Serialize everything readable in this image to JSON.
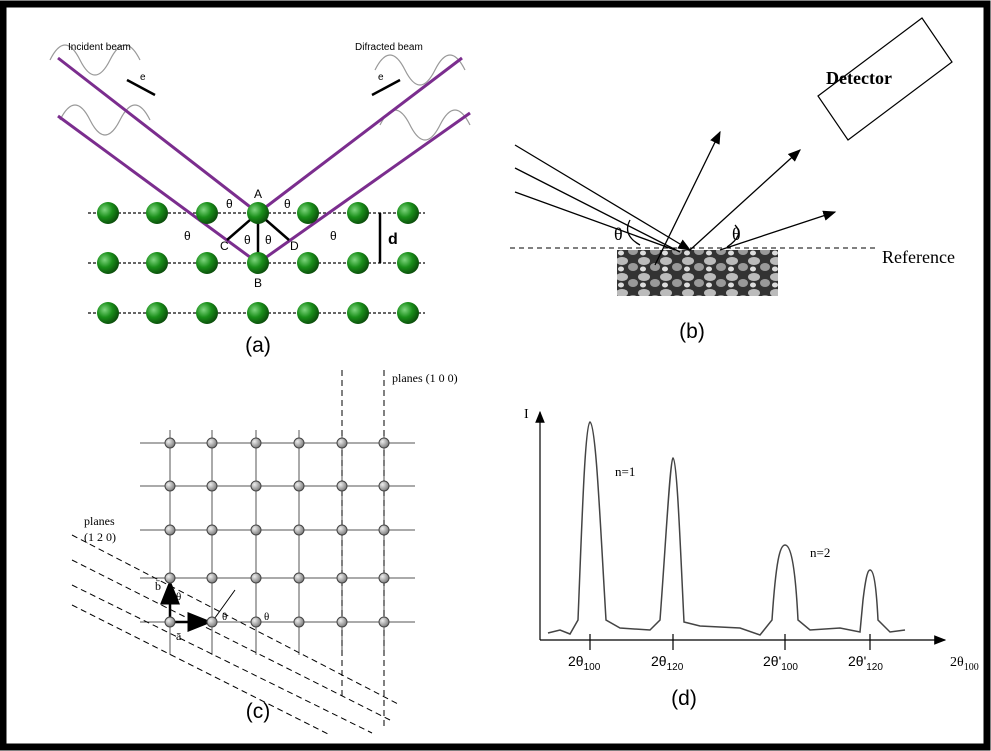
{
  "panel_a": {
    "incident_label": "Incident beam",
    "diffracted_label": "Difracted beam",
    "e_labels": [
      "e",
      "e"
    ],
    "points": [
      "A",
      "B",
      "C",
      "D"
    ],
    "theta_labels": [
      "θ",
      "θ",
      "θ",
      "θ",
      "θ",
      "θ"
    ],
    "d_label": "d",
    "caption": "(a)"
  },
  "panel_b": {
    "detector_label": "Detector",
    "theta_labels": [
      "θ",
      "θ"
    ],
    "reference_label": "Reference",
    "caption": "(b)"
  },
  "panel_c": {
    "planes_100_label": "planes (1 0 0)",
    "planes_120_label": [
      "planes",
      "(1 2 0)"
    ],
    "vector_b": "b̄",
    "vector_a": "ā",
    "theta_labels": [
      "θ",
      "θ",
      "θ"
    ],
    "caption": "(c)"
  },
  "panel_d": {
    "y_label": "I",
    "peak_orders": [
      "n=1",
      "n=2"
    ],
    "peaks": [
      {
        "main": "2θ",
        "sub": "100"
      },
      {
        "main": "2θ",
        "sub": "120"
      },
      {
        "main": "2θ'",
        "sub": "100"
      },
      {
        "main": "2θ'",
        "sub": "120"
      }
    ],
    "x_label": {
      "main": "2θ",
      "sub": "100"
    },
    "caption": "(d)"
  }
}
